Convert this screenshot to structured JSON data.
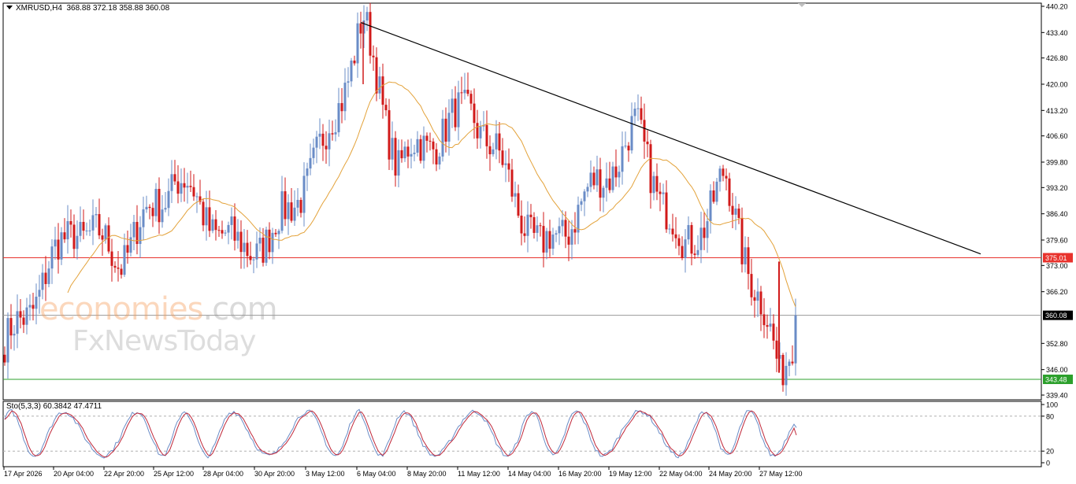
{
  "header": {
    "symbol_label": "XMRUSD,H4",
    "ohlc_text": "368.88 372.18 358.88 360.08"
  },
  "stochastic": {
    "label": "Sto(5,3,3) 60.3842 47.4711",
    "levels": [
      "100",
      "80",
      "20",
      "0"
    ],
    "main_color": "#6a8cc7",
    "signal_color": "#c0283a"
  },
  "watermark": {
    "line1_a": "economies",
    "line1_b": ".com",
    "line2": "FxNewsToday"
  },
  "chart_data": {
    "type": "candlestick",
    "symbol": "XMRUSD",
    "timeframe": "H4",
    "y_ticks": [
      "440.20",
      "433.40",
      "426.80",
      "420.00",
      "413.20",
      "406.60",
      "399.80",
      "393.20",
      "386.40",
      "379.60",
      "373.00",
      "366.20",
      "360.08",
      "352.80",
      "346.00",
      "339.40"
    ],
    "x_ticks": [
      "17 Apr 2026",
      "20 Apr 04:00",
      "22 Apr 20:00",
      "25 Apr 12:00",
      "28 Apr 04:00",
      "30 Apr 20:00",
      "3 May 12:00",
      "6 May 04:00",
      "8 May 20:00",
      "11 May 12:00",
      "14 May 04:00",
      "16 May 20:00",
      "19 May 12:00",
      "22 May 04:00",
      "24 May 20:00",
      "27 May 12:00"
    ],
    "ylim": [
      339.4,
      440.2
    ],
    "horizontal_levels": [
      {
        "value": 375.01,
        "label": "375.01",
        "color": "#e8322c"
      },
      {
        "value": 360.08,
        "label": "360.08",
        "color": "#9a9a9a",
        "tag_color": "#000000"
      },
      {
        "value": 343.48,
        "label": "343.48",
        "color": "#2ca02c"
      }
    ],
    "trendline": {
      "from": {
        "x": "6 May 04:00",
        "y": 436.0
      },
      "to": {
        "x": "30 May",
        "y": 376.0
      }
    },
    "up_color": "#6a8cc7",
    "down_color": "#d11a1a",
    "ma_color": "#e3a23a",
    "key_points": [
      {
        "t": "17 Apr 2026",
        "price": 351
      },
      {
        "t": "20 Apr 04:00",
        "price": 384
      },
      {
        "t": "22 Apr 20:00",
        "price": 375
      },
      {
        "t": "25 Apr 12:00",
        "price": 396
      },
      {
        "t": "28 Apr 04:00",
        "price": 377
      },
      {
        "t": "30 Apr 20:00",
        "price": 380
      },
      {
        "t": "3 May 12:00",
        "price": 404
      },
      {
        "t": "6 May 04:00",
        "price": 436
      },
      {
        "t": "8 May 20:00",
        "price": 399
      },
      {
        "t": "11 May 12:00",
        "price": 414
      },
      {
        "t": "14 May 04:00",
        "price": 376
      },
      {
        "t": "16 May 20:00",
        "price": 392
      },
      {
        "t": "19 May 12:00",
        "price": 408
      },
      {
        "t": "22 May 04:00",
        "price": 376
      },
      {
        "t": "24 May 20:00",
        "price": 395
      },
      {
        "t": "27 May 12:00",
        "price": 345
      },
      {
        "t": "last",
        "price": 360.08
      }
    ]
  }
}
